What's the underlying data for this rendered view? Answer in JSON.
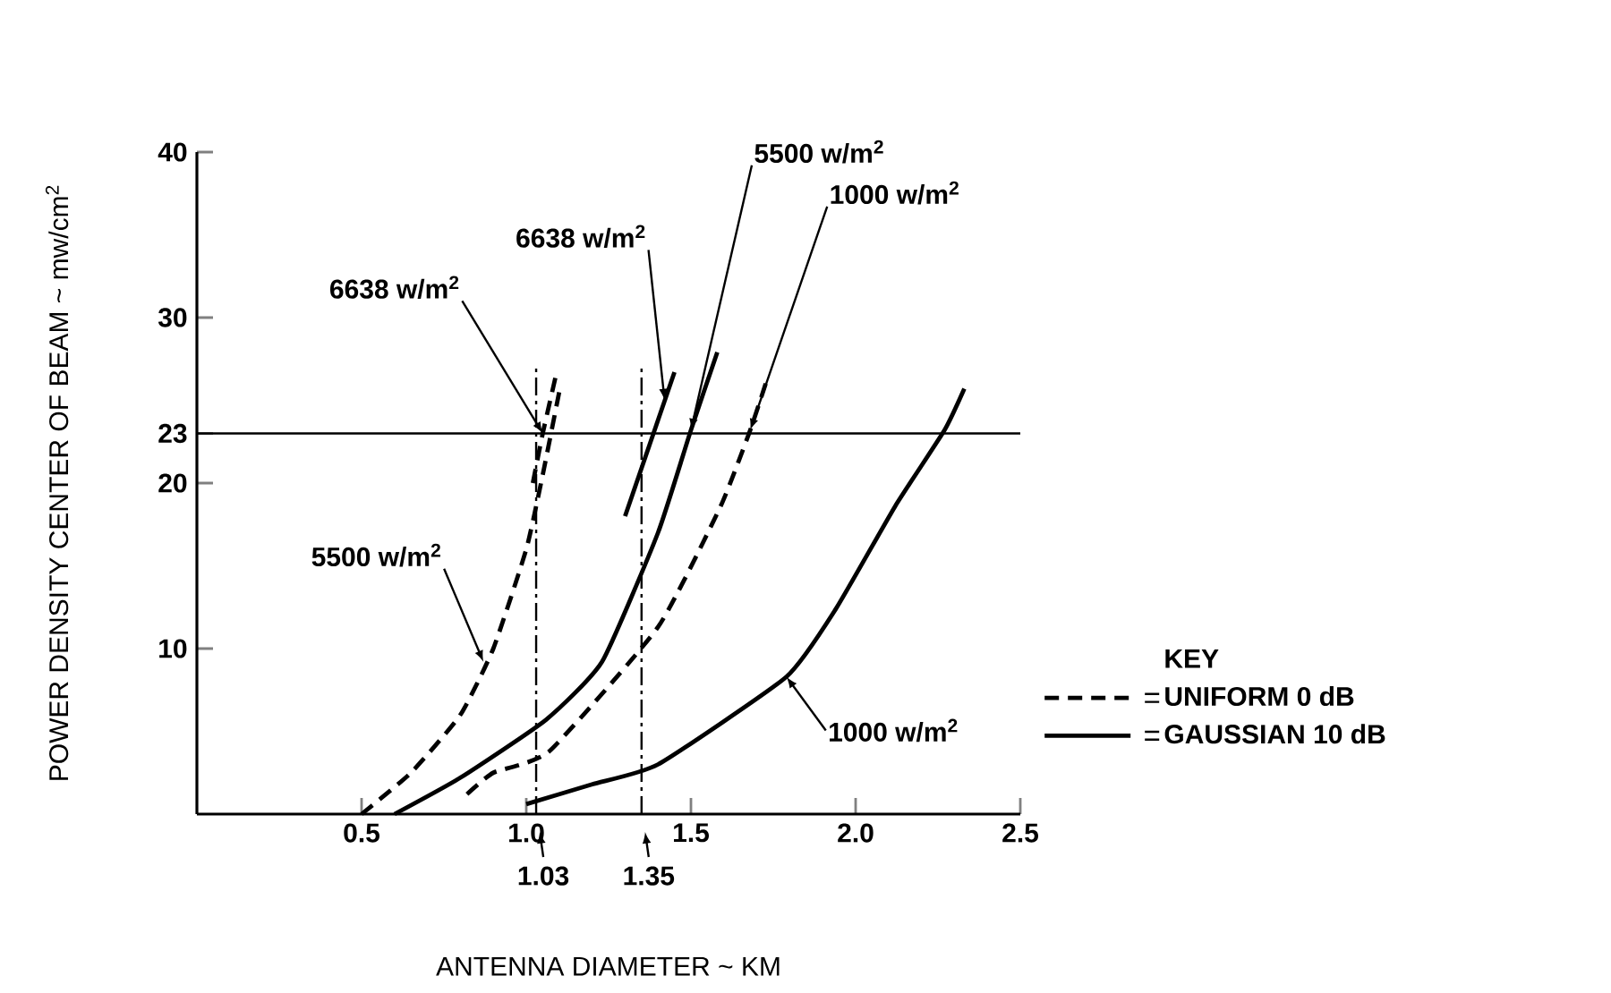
{
  "chart_data": {
    "type": "line",
    "xlabel": "ANTENNA DIAMETER ~ KM",
    "ylabel": "POWER DENSITY CENTER OF BEAM ~ mw/cm$^{2}$",
    "legend_title": "KEY",
    "legend": "right",
    "marker": "none",
    "xlim": [
      0,
      2.5
    ],
    "ylim": [
      0,
      40
    ],
    "xticks": [
      0.5,
      {
        "value": 1,
        "label": "1.0"
      },
      1.5,
      {
        "value": 2,
        "label": "2.0"
      },
      2.5
    ],
    "yticks": [
      10,
      20,
      23,
      30,
      40
    ],
    "series": [
      {
        "name": "UNIFORM 0 dB",
        "color": "#000000",
        "line_style": "dashed",
        "x": [
          0.5,
          0.65,
          0.8,
          0.9,
          1.0,
          1.05,
          1.1
        ],
        "values": [
          0,
          2.5,
          6,
          10,
          16,
          20.5,
          25.5
        ]
      },
      {
        "color": "#000000",
        "line_style": "dashed",
        "x": [
          1.02,
          1.05,
          1.09
        ],
        "values": [
          20,
          23,
          26.5
        ]
      },
      {
        "color": "#000000",
        "line_style": "dashed",
        "x": [
          0.82,
          0.9,
          1.07,
          1.4,
          1.59,
          1.68,
          1.73
        ],
        "values": [
          1.2,
          2.5,
          3.8,
          11.3,
          18.6,
          23.2,
          26.2
        ]
      },
      {
        "name": "GAUSSIAN 10 dB",
        "color": "#000000",
        "line_style": "solid",
        "x": [
          0.6,
          0.8,
          1.06,
          1.23,
          1.4,
          1.5,
          1.58
        ],
        "values": [
          0,
          2.2,
          5.7,
          9.2,
          17,
          23.2,
          27.9
        ]
      },
      {
        "color": "#000000",
        "line_style": "solid",
        "x": [
          1.3,
          1.45
        ],
        "values": [
          18,
          26.7
        ]
      },
      {
        "color": "#000000",
        "line_style": "solid",
        "x": [
          1.0,
          1.2,
          1.4,
          1.79,
          1.94,
          2.12,
          2.27,
          2.33
        ],
        "values": [
          0.6,
          1.8,
          3,
          8.3,
          12.4,
          18.6,
          23.2,
          25.7
        ]
      }
    ],
    "ref_lines": [
      {
        "axis": "y",
        "value": 23,
        "line_style": "solid"
      },
      {
        "axis": "x",
        "value": 1.03,
        "label": "1.03",
        "line_style": "dashdot"
      },
      {
        "axis": "x",
        "value": 1.35,
        "label": "1.35",
        "line_style": "dashdot"
      }
    ],
    "annotations": [
      {
        "text": "6638 w/m$^{2}$",
        "x": 1.05,
        "y": 23
      },
      {
        "text": "5500 w/m$^{2}$",
        "x": 0.87,
        "y": 9.2
      },
      {
        "text": "6638 w/m$^{2}$",
        "x": 1.42,
        "y": 25
      },
      {
        "text": "5500 w/m$^{2}$",
        "x": 1.5,
        "y": 23.2
      },
      {
        "text": "1000 w/m$^{2}$",
        "x": 1.68,
        "y": 23.2
      },
      {
        "text": "1000 w/m$^{2}$",
        "x": 1.79,
        "y": 8.3
      }
    ]
  }
}
